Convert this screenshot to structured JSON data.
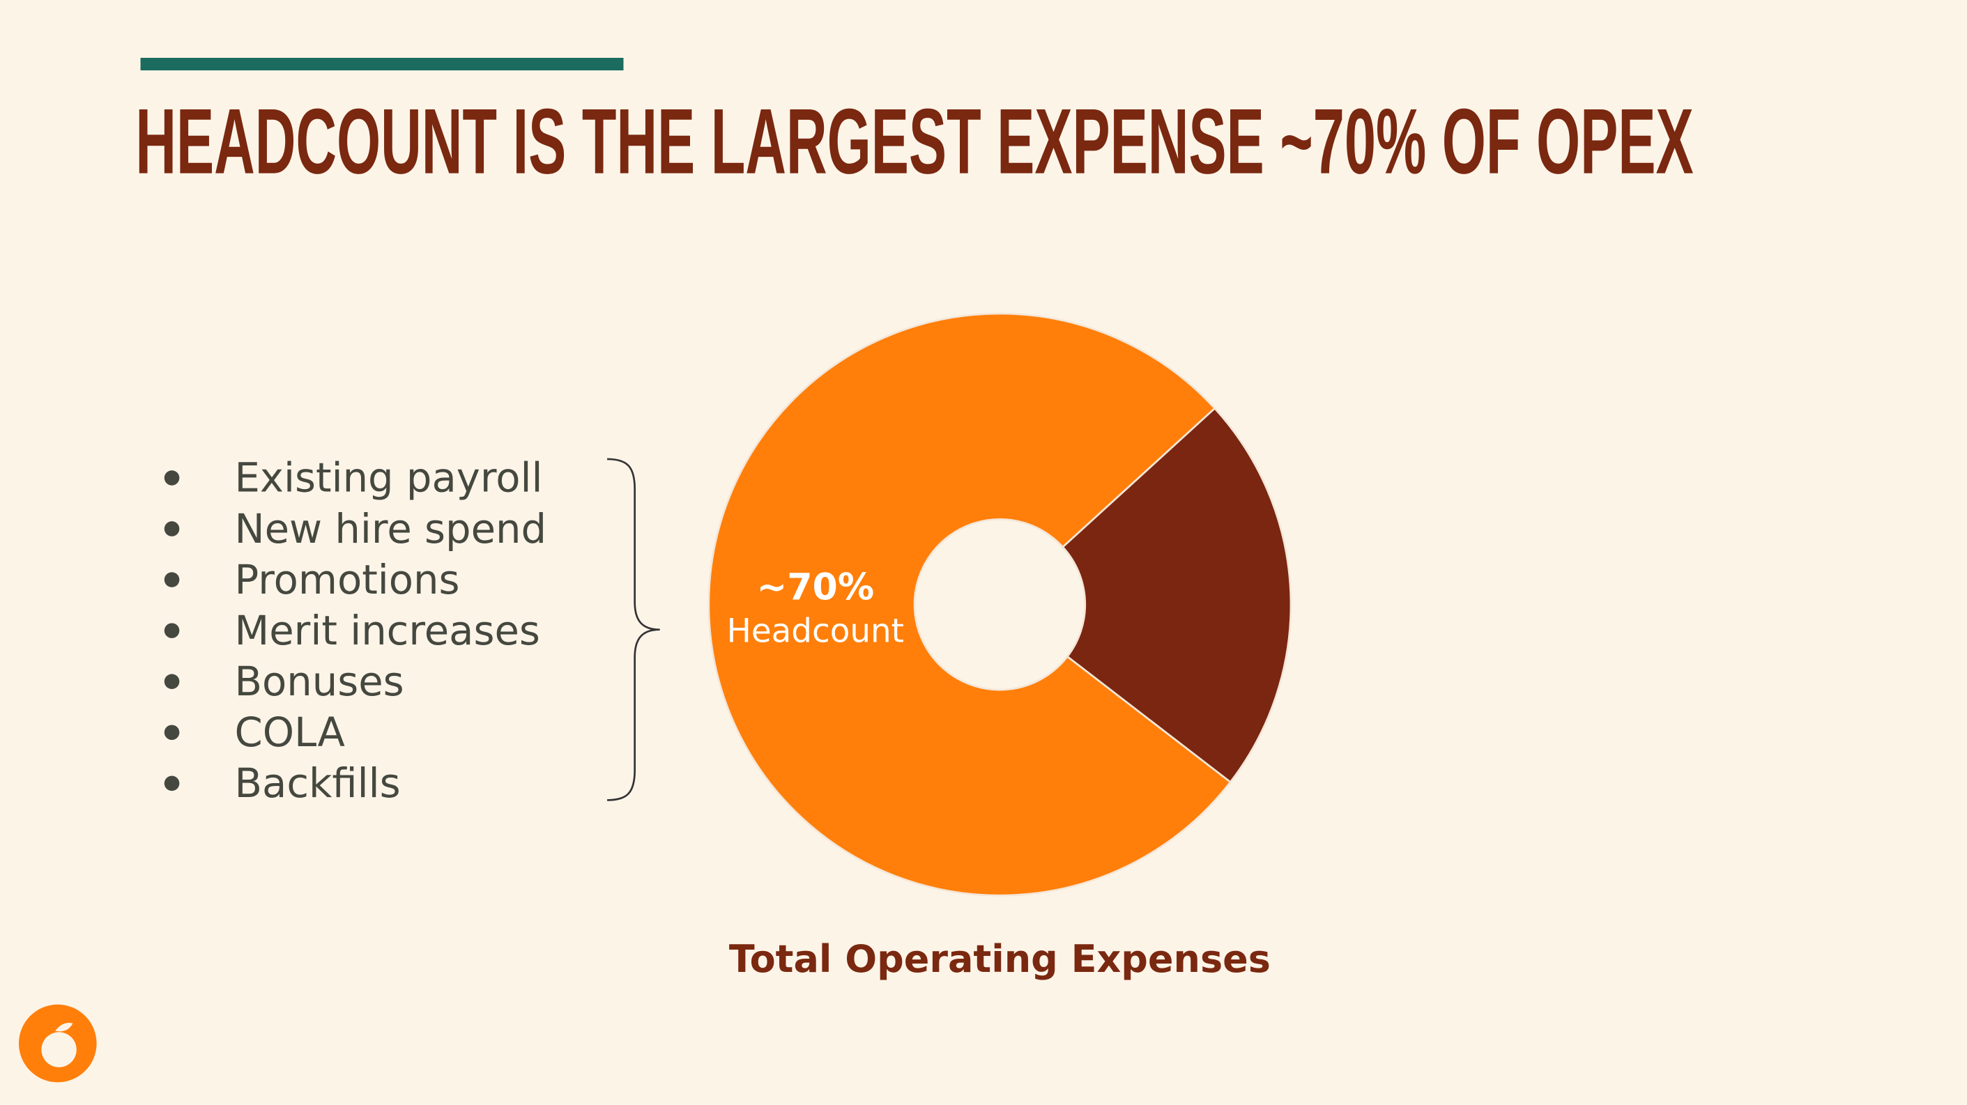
{
  "header": {
    "title": "HEADCOUNT IS THE LARGEST EXPENSE ~70% OF OPEX"
  },
  "bullets": [
    "Existing payroll",
    "New hire spend",
    "Promotions",
    "Merit increases",
    "Bonuses",
    "COLA",
    "Backfills"
  ],
  "chart_data": {
    "type": "donut",
    "title": "Total Operating Expenses",
    "categories": [
      "Headcount",
      null
    ],
    "values": [
      70,
      20
    ],
    "value_labels": [
      "~70%",
      null
    ],
    "colors": [
      "#ff7f0a",
      "#7a2610"
    ]
  }
}
